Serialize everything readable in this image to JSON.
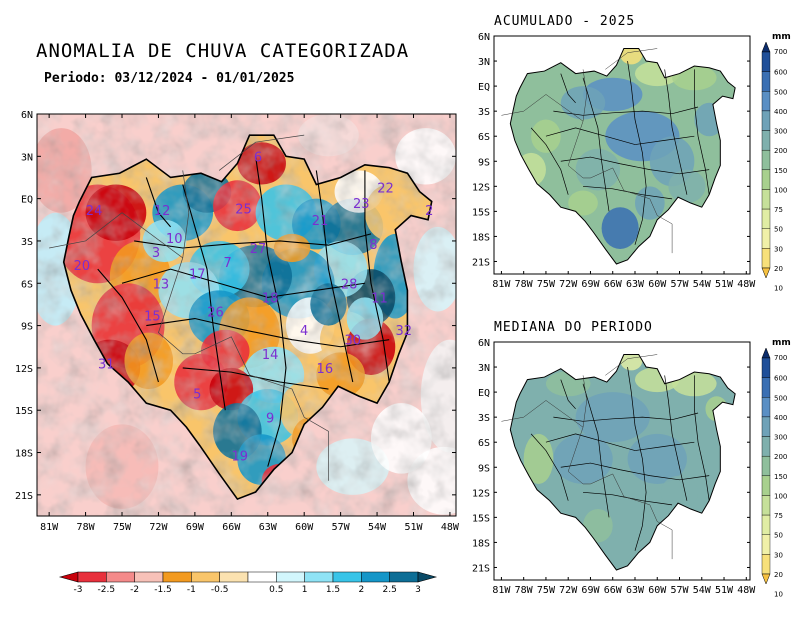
{
  "main": {
    "title": "ANOMALIA DE CHUVA CATEGORIZADA",
    "period": "Periodo: 03/12/2024 - 01/01/2025",
    "lat_ticks": [
      "6N",
      "3N",
      "EQ",
      "3S",
      "6S",
      "9S",
      "12S",
      "15S",
      "18S",
      "21S"
    ],
    "lon_ticks": [
      "81W",
      "78W",
      "75W",
      "72W",
      "69W",
      "66W",
      "63W",
      "60W",
      "57W",
      "54W",
      "51W",
      "48W"
    ],
    "basins": [
      {
        "id": "6",
        "lon": -63.8,
        "lat": 3.0
      },
      {
        "id": "22",
        "lon": -53.3,
        "lat": 0.8
      },
      {
        "id": "12",
        "lon": -71.7,
        "lat": -0.8
      },
      {
        "id": "25",
        "lon": -65.0,
        "lat": -0.7
      },
      {
        "id": "24",
        "lon": -77.3,
        "lat": -0.8
      },
      {
        "id": "23",
        "lon": -55.3,
        "lat": -0.3
      },
      {
        "id": "21",
        "lon": -58.7,
        "lat": -1.5
      },
      {
        "id": "2",
        "lon": -49.7,
        "lat": -0.8
      },
      {
        "id": "10",
        "lon": -70.7,
        "lat": -2.8
      },
      {
        "id": "3",
        "lon": -72.2,
        "lat": -3.8
      },
      {
        "id": "27",
        "lon": -63.8,
        "lat": -3.5
      },
      {
        "id": "8",
        "lon": -54.3,
        "lat": -3.2
      },
      {
        "id": "20",
        "lon": -78.3,
        "lat": -4.7
      },
      {
        "id": "17",
        "lon": -68.8,
        "lat": -5.3
      },
      {
        "id": "7",
        "lon": -66.3,
        "lat": -4.5
      },
      {
        "id": "13",
        "lon": -71.8,
        "lat": -6.0
      },
      {
        "id": "28",
        "lon": -56.3,
        "lat": -6.0
      },
      {
        "id": "18",
        "lon": -62.8,
        "lat": -7.0
      },
      {
        "id": "11",
        "lon": -53.8,
        "lat": -7.0
      },
      {
        "id": "15",
        "lon": -72.5,
        "lat": -8.3
      },
      {
        "id": "26",
        "lon": -67.3,
        "lat": -8.0
      },
      {
        "id": "4",
        "lon": -60.0,
        "lat": -9.3
      },
      {
        "id": "32",
        "lon": -51.8,
        "lat": -9.3
      },
      {
        "id": "30",
        "lon": -56.0,
        "lat": -10.0
      },
      {
        "id": "31",
        "lon": -76.3,
        "lat": -11.7
      },
      {
        "id": "14",
        "lon": -62.8,
        "lat": -11.0
      },
      {
        "id": "16",
        "lon": -58.3,
        "lat": -12.0
      },
      {
        "id": "5",
        "lon": -68.8,
        "lat": -13.8
      },
      {
        "id": "9",
        "lon": -62.8,
        "lat": -15.5
      },
      {
        "id": "19",
        "lon": -65.3,
        "lat": -18.2
      }
    ],
    "colorbar": {
      "labels": [
        "-3",
        "-2.5",
        "-2",
        "-1.5",
        "-1",
        "-0.5",
        "0.5",
        "1",
        "1.5",
        "2",
        "2.5",
        "3"
      ],
      "colors": [
        "#c8000a",
        "#e8303c",
        "#f48a8a",
        "#f7c1b8",
        "#f29a20",
        "#f9c56a",
        "#fbe2b0",
        "#ffffff",
        "#d2f6fc",
        "#8fe3f5",
        "#38c4e8",
        "#1596c8",
        "#0d6e96",
        "#0a4a66"
      ]
    }
  },
  "accumulated": {
    "title": "ACUMULADO - 2025",
    "lat_ticks": [
      "6N",
      "3N",
      "EQ",
      "3S",
      "6S",
      "9S",
      "12S",
      "15S",
      "18S",
      "21S"
    ],
    "lon_ticks": [
      "81W",
      "78W",
      "75W",
      "72W",
      "69W",
      "66W",
      "63W",
      "60W",
      "57W",
      "54W",
      "51W",
      "48W"
    ]
  },
  "median": {
    "title": "MEDIANA DO PERIODO",
    "lat_ticks": [
      "6N",
      "3N",
      "EQ",
      "3S",
      "6S",
      "9S",
      "12S",
      "15S",
      "18S",
      "21S"
    ],
    "lon_ticks": [
      "81W",
      "78W",
      "75W",
      "72W",
      "69W",
      "66W",
      "63W",
      "60W",
      "57W",
      "54W",
      "51W",
      "48W"
    ]
  },
  "mm_scale": {
    "unit": "mm",
    "labels": [
      "700",
      "600",
      "500",
      "400",
      "300",
      "200",
      "150",
      "100",
      "75",
      "50",
      "30",
      "20",
      "10"
    ],
    "colors": [
      "#0b2c6b",
      "#1f4f99",
      "#3a6fb3",
      "#5a8fc4",
      "#6fa2b8",
      "#7fb0ad",
      "#8fbf9c",
      "#a8d08e",
      "#c6e09a",
      "#e0eda4",
      "#f0f0a8",
      "#f7e07a",
      "#f5c040"
    ]
  }
}
